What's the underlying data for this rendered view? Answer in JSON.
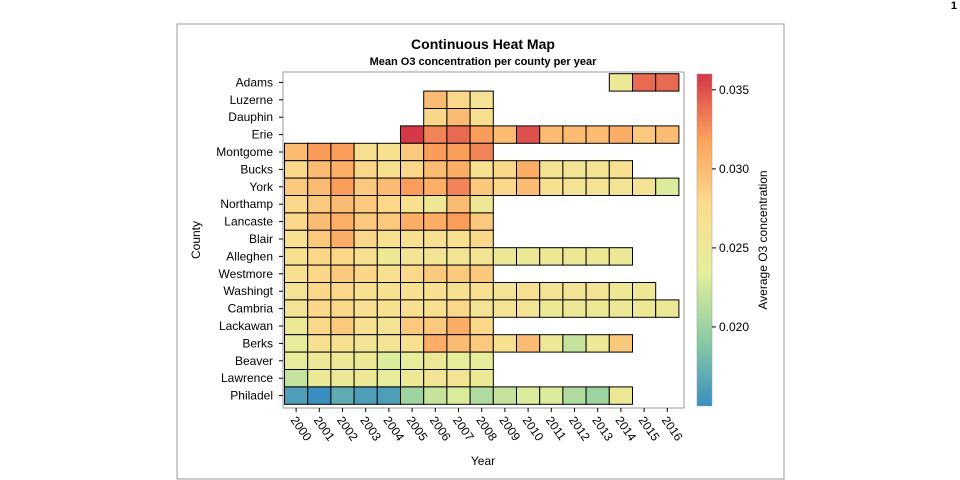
{
  "page_number": "1",
  "chart_data": {
    "type": "heatmap",
    "title": "Continuous Heat Map",
    "subtitle": "Mean O3 concentration per county per year",
    "xlabel": "Year",
    "ylabel": "County",
    "colorbar_label": "Average O3 concentration",
    "colorbar_range": [
      0.015,
      0.036
    ],
    "colorbar_ticks": [
      "0.020",
      "0.025",
      "0.030",
      "0.035"
    ],
    "colorbar_tick_values": [
      0.02,
      0.025,
      0.03,
      0.035
    ],
    "colorscale": [
      "#3a8fc0",
      "#8ccca3",
      "#e3ef9b",
      "#fbdd8f",
      "#fca25c",
      "#d63848"
    ],
    "x": [
      "2000",
      "2001",
      "2002",
      "2003",
      "2004",
      "2005",
      "2006",
      "2007",
      "2008",
      "2009",
      "2010",
      "2011",
      "2012",
      "2013",
      "2014",
      "2015",
      "2016"
    ],
    "y": [
      "Adams",
      "Luzerne",
      "Dauphin",
      "Erie",
      "Montgome",
      "Bucks",
      "York",
      "Northamp",
      "Lancaste",
      "Blair",
      "Alleghen",
      "Westmore",
      "Washingt",
      "Cambria",
      "Lackawan",
      "Berks",
      "Beaver",
      "Lawrence",
      "Philadel"
    ],
    "values": [
      [
        null,
        null,
        null,
        null,
        null,
        null,
        null,
        null,
        null,
        null,
        null,
        null,
        null,
        null,
        0.025,
        0.034,
        0.034
      ],
      [
        null,
        null,
        null,
        null,
        null,
        null,
        0.03,
        0.028,
        0.026,
        null,
        null,
        null,
        null,
        null,
        null,
        null,
        null
      ],
      [
        null,
        null,
        null,
        null,
        null,
        null,
        0.028,
        0.03,
        0.027,
        null,
        null,
        null,
        null,
        null,
        null,
        null,
        null
      ],
      [
        null,
        null,
        null,
        null,
        null,
        0.036,
        0.033,
        0.034,
        0.032,
        0.03,
        0.035,
        0.03,
        0.03,
        0.03,
        0.031,
        0.029,
        0.03
      ],
      [
        0.03,
        0.032,
        0.032,
        0.027,
        0.027,
        0.029,
        0.032,
        0.032,
        0.033,
        null,
        null,
        null,
        null,
        null,
        null,
        null,
        null
      ],
      [
        0.028,
        0.03,
        0.031,
        0.028,
        0.027,
        0.028,
        0.03,
        0.031,
        0.027,
        0.028,
        0.031,
        0.026,
        0.026,
        0.026,
        0.027,
        null,
        null
      ],
      [
        0.029,
        0.03,
        0.032,
        0.029,
        0.03,
        0.032,
        0.031,
        0.033,
        0.029,
        0.028,
        0.03,
        0.027,
        0.026,
        0.026,
        0.026,
        0.026,
        0.023
      ],
      [
        0.028,
        0.029,
        0.03,
        0.029,
        0.028,
        0.027,
        0.025,
        0.03,
        0.025,
        null,
        null,
        null,
        null,
        null,
        null,
        null,
        null
      ],
      [
        0.028,
        0.03,
        0.031,
        0.029,
        0.029,
        0.031,
        0.031,
        0.032,
        0.029,
        null,
        null,
        null,
        null,
        null,
        null,
        null,
        null
      ],
      [
        0.027,
        0.029,
        0.031,
        0.028,
        0.027,
        0.027,
        0.027,
        0.027,
        0.028,
        null,
        null,
        null,
        null,
        null,
        null,
        null,
        null
      ],
      [
        0.027,
        0.028,
        0.028,
        0.027,
        0.025,
        0.026,
        0.026,
        0.026,
        0.026,
        0.025,
        0.025,
        0.025,
        0.025,
        0.025,
        0.025,
        null,
        null
      ],
      [
        0.027,
        0.028,
        0.029,
        0.028,
        0.027,
        0.028,
        0.029,
        0.029,
        0.029,
        null,
        null,
        null,
        null,
        null,
        null,
        null,
        null
      ],
      [
        0.026,
        0.028,
        0.028,
        0.027,
        0.027,
        0.027,
        0.027,
        0.027,
        0.027,
        0.026,
        0.027,
        0.026,
        0.026,
        0.026,
        0.025,
        0.025,
        null
      ],
      [
        0.026,
        0.028,
        0.028,
        0.027,
        0.027,
        0.027,
        0.027,
        0.028,
        0.026,
        0.026,
        0.026,
        0.025,
        0.025,
        0.025,
        0.025,
        0.025,
        0.025
      ],
      [
        0.025,
        0.028,
        0.029,
        0.027,
        0.026,
        0.029,
        0.029,
        0.031,
        0.028,
        null,
        null,
        null,
        null,
        null,
        null,
        null,
        null
      ],
      [
        0.024,
        0.027,
        0.027,
        0.026,
        0.026,
        0.027,
        0.031,
        0.03,
        0.029,
        0.027,
        0.03,
        0.025,
        0.022,
        0.025,
        0.029,
        null,
        null
      ],
      [
        0.024,
        0.025,
        0.025,
        0.025,
        0.023,
        0.024,
        0.025,
        0.024,
        0.024,
        null,
        null,
        null,
        null,
        null,
        null,
        null,
        null
      ],
      [
        0.022,
        0.025,
        0.025,
        0.025,
        0.024,
        0.025,
        0.026,
        0.026,
        0.025,
        null,
        null,
        null,
        null,
        null,
        null,
        null,
        null
      ],
      [
        0.016,
        0.015,
        0.017,
        0.016,
        0.016,
        0.02,
        0.022,
        0.023,
        0.021,
        0.022,
        0.023,
        0.023,
        0.021,
        0.02,
        0.025,
        null,
        null
      ]
    ],
    "grid": false,
    "legend": "colorbar right"
  }
}
